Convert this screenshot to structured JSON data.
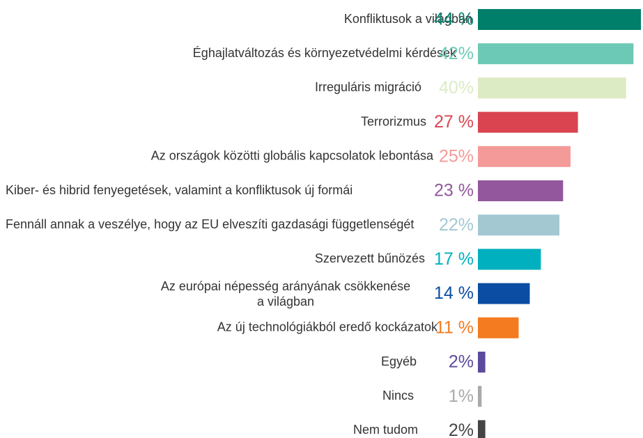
{
  "chart_data": {
    "type": "bar",
    "orientation": "horizontal",
    "categories": [
      "Konfliktusok a világban",
      "Éghajlatváltozás és környezetvédelmi kérdések",
      "Irreguláris migráció",
      "Terrorizmus",
      "Az országok közötti globális kapcsolatok lebontása",
      "Kiber- és hibrid fenyegetések, valamint a konfliktusok új formái",
      "Fennáll annak a veszélye, hogy az EU elveszíti gazdasági függetlenségét",
      "Szervezett bűnözés",
      "Az európai népesség arányának csökkenése a világban",
      "Az új technológiákból eredő kockázatok",
      "Egyéb",
      "Nincs",
      "Nem tudom"
    ],
    "values": [
      44,
      42,
      40,
      27,
      25,
      23,
      22,
      17,
      14,
      11,
      2,
      1,
      2
    ],
    "value_labels": [
      "44 %",
      "42%",
      "40%",
      "27 %",
      "25%",
      "23 %",
      "22%",
      "17 %",
      "14 %",
      "11 %",
      "2%",
      "1%",
      "2%"
    ],
    "colors": [
      "#007f6a",
      "#6cc9b6",
      "#dcebc3",
      "#da4450",
      "#f49a98",
      "#92579c",
      "#a3c8d2",
      "#00b0bf",
      "#0a4da2",
      "#f47b20",
      "#5d4a9c",
      "#aaaaaa",
      "#444444"
    ]
  }
}
